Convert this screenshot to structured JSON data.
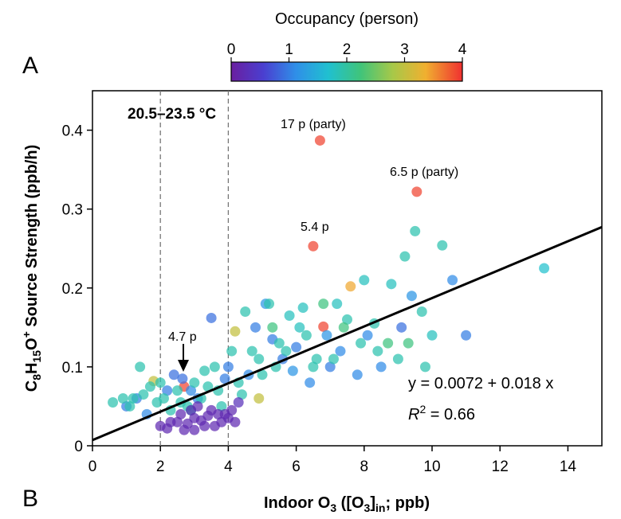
{
  "panel_labels": {
    "top": "A",
    "bottom": "B"
  },
  "colorbar": {
    "title": "Occupancy (person)",
    "ticks": [
      0,
      1,
      2,
      3,
      4
    ],
    "min": 0,
    "max": 4
  },
  "annotations": {
    "temp_range": "20.5–23.5 °C",
    "party_17": "17 p (party)",
    "party_6_5": "6.5 p (party)",
    "p_5_4": "5.4 p",
    "p_4_7": "4.7 p",
    "equation": "y = 0.0072 + 0.018 x",
    "r2_value": " = 0.66"
  },
  "chart_data": {
    "type": "scatter",
    "xlabel": "Indoor O3 ([O3]in; ppb)",
    "ylabel": "C8H15O+ Source Strength (ppb/h)",
    "xlim": [
      0,
      15
    ],
    "ylim": [
      0,
      0.45
    ],
    "xticks": [
      0,
      2,
      4,
      6,
      8,
      10,
      12,
      14
    ],
    "yticks": [
      0,
      0.1,
      0.2,
      0.3,
      0.4
    ],
    "vlines": [
      2,
      4
    ],
    "fit": {
      "intercept": 0.0072,
      "slope": 0.018,
      "r2": 0.66
    },
    "points": [
      [
        6.7,
        0.387,
        3.9
      ],
      [
        9.55,
        0.322,
        3.9
      ],
      [
        6.5,
        0.253,
        3.9
      ],
      [
        6.8,
        0.151,
        3.9
      ],
      [
        2.7,
        0.075,
        3.9
      ],
      [
        7.6,
        0.202,
        3.4
      ],
      [
        1.8,
        0.082,
        3.0
      ],
      [
        4.2,
        0.145,
        3.0
      ],
      [
        4.9,
        0.06,
        3.0
      ],
      [
        3.5,
        0.162,
        0.9
      ],
      [
        9.1,
        0.15,
        0.9
      ],
      [
        11.0,
        0.14,
        1.0
      ],
      [
        10.6,
        0.21,
        1.1
      ],
      [
        2.4,
        0.09,
        0.9
      ],
      [
        2.65,
        0.085,
        0.9
      ],
      [
        5.3,
        0.135,
        1.0
      ],
      [
        6.0,
        0.125,
        1.0
      ],
      [
        7.0,
        0.1,
        1.0
      ],
      [
        4.8,
        0.15,
        1.0
      ],
      [
        1.3,
        0.06,
        1.0
      ],
      [
        1.0,
        0.05,
        1.0
      ],
      [
        2.2,
        0.07,
        1.0
      ],
      [
        3.1,
        0.06,
        1.0
      ],
      [
        5.6,
        0.11,
        1.0
      ],
      [
        6.4,
        0.08,
        1.1
      ],
      [
        7.3,
        0.12,
        1.1
      ],
      [
        8.1,
        0.14,
        1.1
      ],
      [
        8.5,
        0.1,
        1.1
      ],
      [
        4.0,
        0.1,
        1.0
      ],
      [
        3.9,
        0.085,
        1.0
      ],
      [
        5.1,
        0.18,
        1.2
      ],
      [
        6.9,
        0.14,
        1.2
      ],
      [
        9.4,
        0.19,
        1.2
      ],
      [
        1.6,
        0.04,
        1.1
      ],
      [
        2.9,
        0.07,
        1.1
      ],
      [
        4.6,
        0.09,
        1.1
      ],
      [
        5.9,
        0.095,
        1.2
      ],
      [
        7.8,
        0.09,
        1.1
      ],
      [
        13.3,
        0.225,
        1.7
      ],
      [
        9.5,
        0.272,
        1.9
      ],
      [
        10.3,
        0.254,
        1.9
      ],
      [
        9.2,
        0.24,
        1.9
      ],
      [
        8.0,
        0.21,
        1.8
      ],
      [
        8.8,
        0.205,
        1.8
      ],
      [
        7.2,
        0.18,
        1.8
      ],
      [
        6.2,
        0.175,
        1.8
      ],
      [
        5.8,
        0.165,
        1.8
      ],
      [
        5.2,
        0.18,
        1.9
      ],
      [
        4.5,
        0.17,
        1.9
      ],
      [
        6.1,
        0.15,
        1.8
      ],
      [
        7.5,
        0.16,
        1.9
      ],
      [
        8.3,
        0.155,
        1.9
      ],
      [
        9.7,
        0.17,
        1.9
      ],
      [
        7.9,
        0.13,
        1.9
      ],
      [
        8.4,
        0.12,
        1.9
      ],
      [
        9.0,
        0.11,
        1.9
      ],
      [
        9.8,
        0.1,
        1.9
      ],
      [
        10.0,
        0.14,
        1.8
      ],
      [
        6.6,
        0.11,
        1.9
      ],
      [
        5.4,
        0.1,
        1.9
      ],
      [
        4.7,
        0.12,
        1.9
      ],
      [
        4.1,
        0.12,
        1.9
      ],
      [
        3.6,
        0.1,
        1.9
      ],
      [
        3.3,
        0.095,
        1.9
      ],
      [
        3.0,
        0.08,
        1.9
      ],
      [
        2.5,
        0.07,
        1.9
      ],
      [
        2.1,
        0.06,
        1.9
      ],
      [
        1.9,
        0.055,
        1.9
      ],
      [
        1.5,
        0.065,
        1.9
      ],
      [
        1.2,
        0.06,
        1.9
      ],
      [
        0.9,
        0.06,
        1.9
      ],
      [
        0.6,
        0.055,
        1.9
      ],
      [
        1.4,
        0.1,
        1.9
      ],
      [
        1.1,
        0.05,
        1.9
      ],
      [
        1.7,
        0.075,
        1.9
      ],
      [
        2.3,
        0.045,
        1.9
      ],
      [
        2.8,
        0.05,
        1.9
      ],
      [
        3.2,
        0.06,
        1.9
      ],
      [
        3.7,
        0.07,
        1.9
      ],
      [
        4.3,
        0.08,
        1.9
      ],
      [
        5.0,
        0.09,
        1.9
      ],
      [
        5.5,
        0.13,
        1.9
      ],
      [
        6.3,
        0.14,
        1.9
      ],
      [
        4.4,
        0.065,
        1.9
      ],
      [
        3.4,
        0.075,
        1.9
      ],
      [
        2.6,
        0.055,
        1.9
      ],
      [
        2.0,
        0.08,
        1.9
      ],
      [
        4.9,
        0.11,
        1.9
      ],
      [
        5.7,
        0.12,
        1.9
      ],
      [
        6.5,
        0.1,
        1.9
      ],
      [
        7.1,
        0.11,
        1.9
      ],
      [
        3.8,
        0.05,
        1.9
      ],
      [
        2.9,
        0.045,
        1.9
      ],
      [
        6.8,
        0.18,
        2.2
      ],
      [
        7.4,
        0.15,
        2.2
      ],
      [
        8.7,
        0.13,
        2.2
      ],
      [
        9.3,
        0.13,
        2.2
      ],
      [
        5.3,
        0.15,
        2.2
      ],
      [
        2.0,
        0.025,
        0.2
      ],
      [
        2.2,
        0.022,
        0.2
      ],
      [
        2.5,
        0.03,
        0.2
      ],
      [
        2.8,
        0.028,
        0.2
      ],
      [
        3.0,
        0.035,
        0.2
      ],
      [
        3.2,
        0.032,
        0.2
      ],
      [
        3.4,
        0.038,
        0.2
      ],
      [
        3.6,
        0.025,
        0.2
      ],
      [
        3.8,
        0.03,
        0.2
      ],
      [
        4.0,
        0.035,
        0.2
      ],
      [
        2.6,
        0.04,
        0.2
      ],
      [
        2.9,
        0.045,
        0.2
      ],
      [
        3.1,
        0.05,
        0.2
      ],
      [
        3.5,
        0.045,
        0.2
      ],
      [
        3.9,
        0.04,
        0.2
      ],
      [
        4.2,
        0.03,
        0.2
      ],
      [
        2.3,
        0.03,
        0.2
      ],
      [
        3.3,
        0.025,
        0.2
      ],
      [
        3.7,
        0.04,
        0.2
      ],
      [
        4.1,
        0.045,
        0.2
      ],
      [
        4.3,
        0.055,
        0.3
      ],
      [
        2.7,
        0.02,
        0.2
      ],
      [
        3.0,
        0.02,
        0.2
      ]
    ]
  }
}
